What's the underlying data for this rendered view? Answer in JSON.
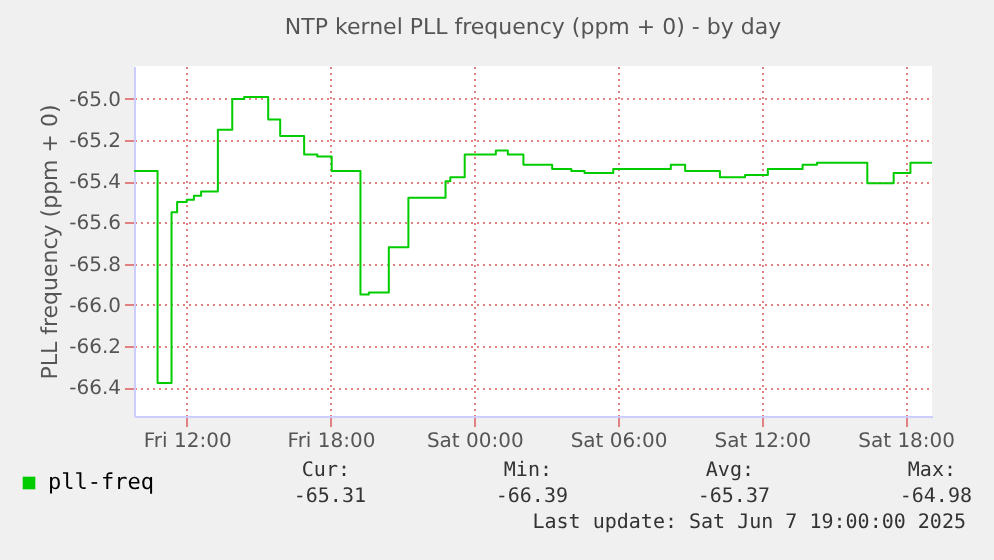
{
  "chart_data": {
    "type": "step",
    "title": "NTP kernel PLL frequency (ppm + 0) - by day",
    "ylabel": "PLL frequency (ppm + 0)",
    "x": [
      "2025-06-06T09:48",
      "2025-06-06T10:47",
      "2025-06-06T11:22",
      "2025-06-06T11:36",
      "2025-06-06T12:00",
      "2025-06-06T12:18",
      "2025-06-06T12:36",
      "2025-06-06T13:18",
      "2025-06-06T13:54",
      "2025-06-06T14:24",
      "2025-06-06T15:24",
      "2025-06-06T15:54",
      "2025-06-06T16:54",
      "2025-06-06T17:27",
      "2025-06-06T18:03",
      "2025-06-06T19:15",
      "2025-06-06T19:36",
      "2025-06-06T20:26",
      "2025-06-06T21:15",
      "2025-06-06T22:48",
      "2025-06-06T23:00",
      "2025-06-06T23:36",
      "2025-06-07T00:54",
      "2025-06-07T01:24",
      "2025-06-07T02:03",
      "2025-06-07T03:15",
      "2025-06-07T04:03",
      "2025-06-07T04:36",
      "2025-06-07T05:48",
      "2025-06-07T08:12",
      "2025-06-07T08:48",
      "2025-06-07T10:15",
      "2025-06-07T11:18",
      "2025-06-07T12:15",
      "2025-06-07T13:42",
      "2025-06-07T14:18",
      "2025-06-07T16:24",
      "2025-06-07T17:30",
      "2025-06-07T18:12",
      "2025-06-07T19:06"
    ],
    "series": [
      {
        "name": "pll-freq",
        "color": "#00cc00",
        "values": [
          -65.35,
          -66.38,
          -65.55,
          -65.5,
          -65.49,
          -65.47,
          -65.45,
          -65.15,
          -65.0,
          -64.99,
          -65.1,
          -65.18,
          -65.27,
          -65.28,
          -65.35,
          -65.95,
          -65.94,
          -65.72,
          -65.48,
          -65.4,
          -65.38,
          -65.27,
          -65.25,
          -65.27,
          -65.32,
          -65.34,
          -65.35,
          -65.36,
          -65.34,
          -65.32,
          -65.35,
          -65.38,
          -65.37,
          -65.34,
          -65.32,
          -65.31,
          -65.41,
          -65.36,
          -65.31,
          -65.31
        ]
      }
    ],
    "xlim": [
      "2025-06-06T09:48",
      "2025-06-07T19:06"
    ],
    "xticks": [
      {
        "value": "2025-06-06T12:00",
        "label": "Fri 12:00"
      },
      {
        "value": "2025-06-06T18:00",
        "label": "Fri 18:00"
      },
      {
        "value": "2025-06-07T00:00",
        "label": "Sat 00:00"
      },
      {
        "value": "2025-06-07T06:00",
        "label": "Sat 06:00"
      },
      {
        "value": "2025-06-07T12:00",
        "label": "Sat 12:00"
      },
      {
        "value": "2025-06-07T18:00",
        "label": "Sat 18:00"
      }
    ],
    "ylim": [
      -66.54,
      -64.84
    ],
    "yticks": [
      {
        "value": -66.4,
        "label": "-66.4"
      },
      {
        "value": -66.2,
        "label": "-66.2"
      },
      {
        "value": -66.0,
        "label": "-66.0"
      },
      {
        "value": -65.8,
        "label": "-65.8"
      },
      {
        "value": -65.6,
        "label": "-65.6"
      },
      {
        "value": -65.4,
        "label": "-65.4"
      },
      {
        "value": -65.2,
        "label": "-65.2"
      },
      {
        "value": -65.0,
        "label": "-65.0"
      }
    ],
    "grid": true,
    "legend": "bottom left",
    "line_style": "solid",
    "marker": "none",
    "annotations": [
      "Cur:",
      "Min:",
      "Avg:",
      "Max:",
      "-65.31",
      "-66.39",
      "-65.37",
      "-64.98",
      "Last update: Sat Jun  7 19:00:00 2025"
    ]
  }
}
